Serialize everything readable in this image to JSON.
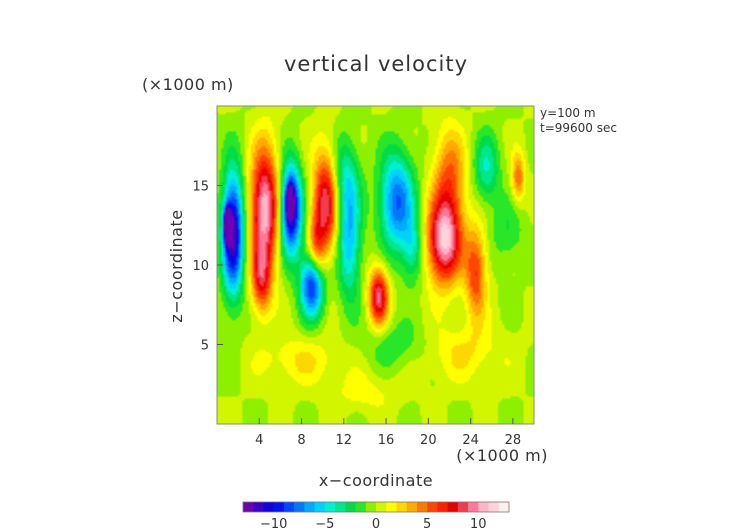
{
  "chart_data": {
    "type": "heatmap",
    "title": "vertical velocity",
    "xlabel": "x−coordinate",
    "ylabel": "z−coordinate",
    "x_unit_label": "(×1000 m)",
    "y_unit_label": "(×1000 m)",
    "annotations": [
      "y=100 m",
      "t=99600 sec"
    ],
    "xlim": [
      0,
      30
    ],
    "ylim": [
      0,
      20
    ],
    "x_ticks": [
      4,
      8,
      12,
      16,
      20,
      24,
      28
    ],
    "x_tick_labels": [
      "4",
      "8",
      "12",
      "16",
      "20",
      "24",
      "28"
    ],
    "y_ticks": [
      5,
      10,
      15
    ],
    "y_tick_labels": [
      "5",
      "10",
      "15"
    ],
    "colorbar": {
      "min": -13,
      "max": 13,
      "ticks": [
        -10,
        -5,
        0,
        5,
        10
      ],
      "tick_labels": [
        "−10",
        "−5",
        "0",
        "5",
        "10"
      ],
      "colors": [
        "#6e00b4",
        "#3c00c8",
        "#1400dc",
        "#0014f0",
        "#0046ff",
        "#0078ff",
        "#00aaff",
        "#00d2ff",
        "#00f0d2",
        "#00e68c",
        "#00dc46",
        "#28e628",
        "#8cf000",
        "#d2f500",
        "#ffff00",
        "#ffd700",
        "#ffaa00",
        "#ff7800",
        "#ff4600",
        "#ff1e00",
        "#e60000",
        "#f03c50",
        "#ff7896",
        "#ffb4c8",
        "#ffd2dc",
        "#fff0f0"
      ]
    },
    "features": [
      {
        "x": 1.5,
        "z": 12.0,
        "value": -12,
        "sx": 1.0,
        "sz": 3.8
      },
      {
        "x": 1.0,
        "z": 12.5,
        "value": -13,
        "sx": 0.35,
        "sz": 1.0
      },
      {
        "x": 4.5,
        "z": 13.5,
        "value": 11,
        "sx": 1.3,
        "sz": 3.8
      },
      {
        "x": 4.2,
        "z": 9.0,
        "value": 6,
        "sx": 0.9,
        "sz": 2.0
      },
      {
        "x": 7.0,
        "z": 13.5,
        "value": -12,
        "sx": 1.0,
        "sz": 2.8
      },
      {
        "x": 6.9,
        "z": 14.0,
        "value": -13,
        "sx": 0.3,
        "sz": 0.9
      },
      {
        "x": 9.0,
        "z": 8.8,
        "value": -10,
        "sx": 1.1,
        "sz": 2.0
      },
      {
        "x": 10.3,
        "z": 14.0,
        "value": 9,
        "sx": 1.2,
        "sz": 3.2
      },
      {
        "x": 9.4,
        "z": 11.0,
        "value": 5,
        "sx": 0.8,
        "sz": 2.0
      },
      {
        "x": 12.5,
        "z": 11.5,
        "value": -6,
        "sx": 1.1,
        "sz": 3.5
      },
      {
        "x": 12.0,
        "z": 15.5,
        "value": -4,
        "sx": 1.4,
        "sz": 2.5
      },
      {
        "x": 15.3,
        "z": 8.0,
        "value": 9,
        "sx": 0.9,
        "sz": 1.8
      },
      {
        "x": 17.0,
        "z": 14.0,
        "value": -8,
        "sx": 1.6,
        "sz": 3.0
      },
      {
        "x": 18.5,
        "z": 11.0,
        "value": -4,
        "sx": 1.0,
        "sz": 2.0
      },
      {
        "x": 21.5,
        "z": 11.5,
        "value": 11,
        "sx": 1.6,
        "sz": 2.6
      },
      {
        "x": 22.0,
        "z": 15.5,
        "value": 5,
        "sx": 1.5,
        "sz": 3.0
      },
      {
        "x": 24.5,
        "z": 9.5,
        "value": 6,
        "sx": 1.0,
        "sz": 2.8
      },
      {
        "x": 25.5,
        "z": 16.0,
        "value": -4,
        "sx": 1.2,
        "sz": 2.2
      },
      {
        "x": 28.5,
        "z": 15.5,
        "value": 5,
        "sx": 0.6,
        "sz": 1.5
      },
      {
        "x": 27.5,
        "z": 12.0,
        "value": -2,
        "sx": 1.5,
        "sz": 2.0
      },
      {
        "x": 23.0,
        "z": 4.5,
        "value": 2,
        "sx": 4.0,
        "sz": 1.8
      },
      {
        "x": 8.0,
        "z": 4.0,
        "value": 2,
        "sx": 4.0,
        "sz": 1.5
      },
      {
        "x": 17.0,
        "z": 5.0,
        "value": -2,
        "sx": 3.0,
        "sz": 1.5
      },
      {
        "x": 14.0,
        "z": 2.0,
        "value": 1.5,
        "sx": 3.0,
        "sz": 1.2
      }
    ]
  }
}
